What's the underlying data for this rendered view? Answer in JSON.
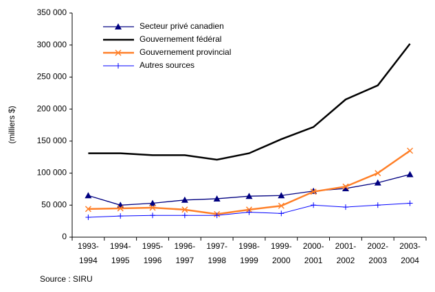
{
  "chart_data": {
    "type": "line",
    "y_label": "(milliers $)",
    "source": "Source : SIRU",
    "categories": [
      "1993-1994",
      "1994-1995",
      "1995-1996",
      "1996-1997",
      "1997-1998",
      "1998-1999",
      "1999-2000",
      "2000-2001",
      "2001-2002",
      "2002-2003",
      "2003-2004"
    ],
    "series": [
      {
        "name": "Secteur privé canadien",
        "color": "#000080",
        "marker": "triangle",
        "values": [
          65000,
          50000,
          53000,
          58000,
          60000,
          64000,
          65000,
          72000,
          76000,
          85000,
          98000
        ]
      },
      {
        "name": "Gouvernement fédéral",
        "color": "#000000",
        "marker": "none",
        "values": [
          131000,
          131000,
          128000,
          128000,
          121000,
          131000,
          153000,
          172000,
          215000,
          237000,
          302000
        ]
      },
      {
        "name": "Gouvernement provincial",
        "color": "#ff7f27",
        "marker": "x",
        "values": [
          44000,
          45000,
          46000,
          43000,
          36000,
          43000,
          49000,
          71000,
          79000,
          100000,
          135000
        ]
      },
      {
        "name": "Autres sources",
        "color": "#0000ff",
        "marker": "plus",
        "values": [
          31000,
          33000,
          34000,
          34000,
          34000,
          39000,
          37000,
          50000,
          47000,
          50000,
          53000
        ]
      }
    ],
    "ylim": [
      0,
      350000
    ],
    "yticks": [
      0,
      {
        "value": 50000,
        "label": "50 000"
      },
      {
        "value": 100000,
        "label": "100 000"
      },
      {
        "value": 150000,
        "label": "150 000"
      },
      {
        "value": 200000,
        "label": "200 000"
      },
      {
        "value": 250000,
        "label": "250 000"
      },
      {
        "value": 300000,
        "label": "300 000"
      },
      {
        "value": 350000,
        "label": "350 000"
      }
    ],
    "legend": "upper left"
  }
}
